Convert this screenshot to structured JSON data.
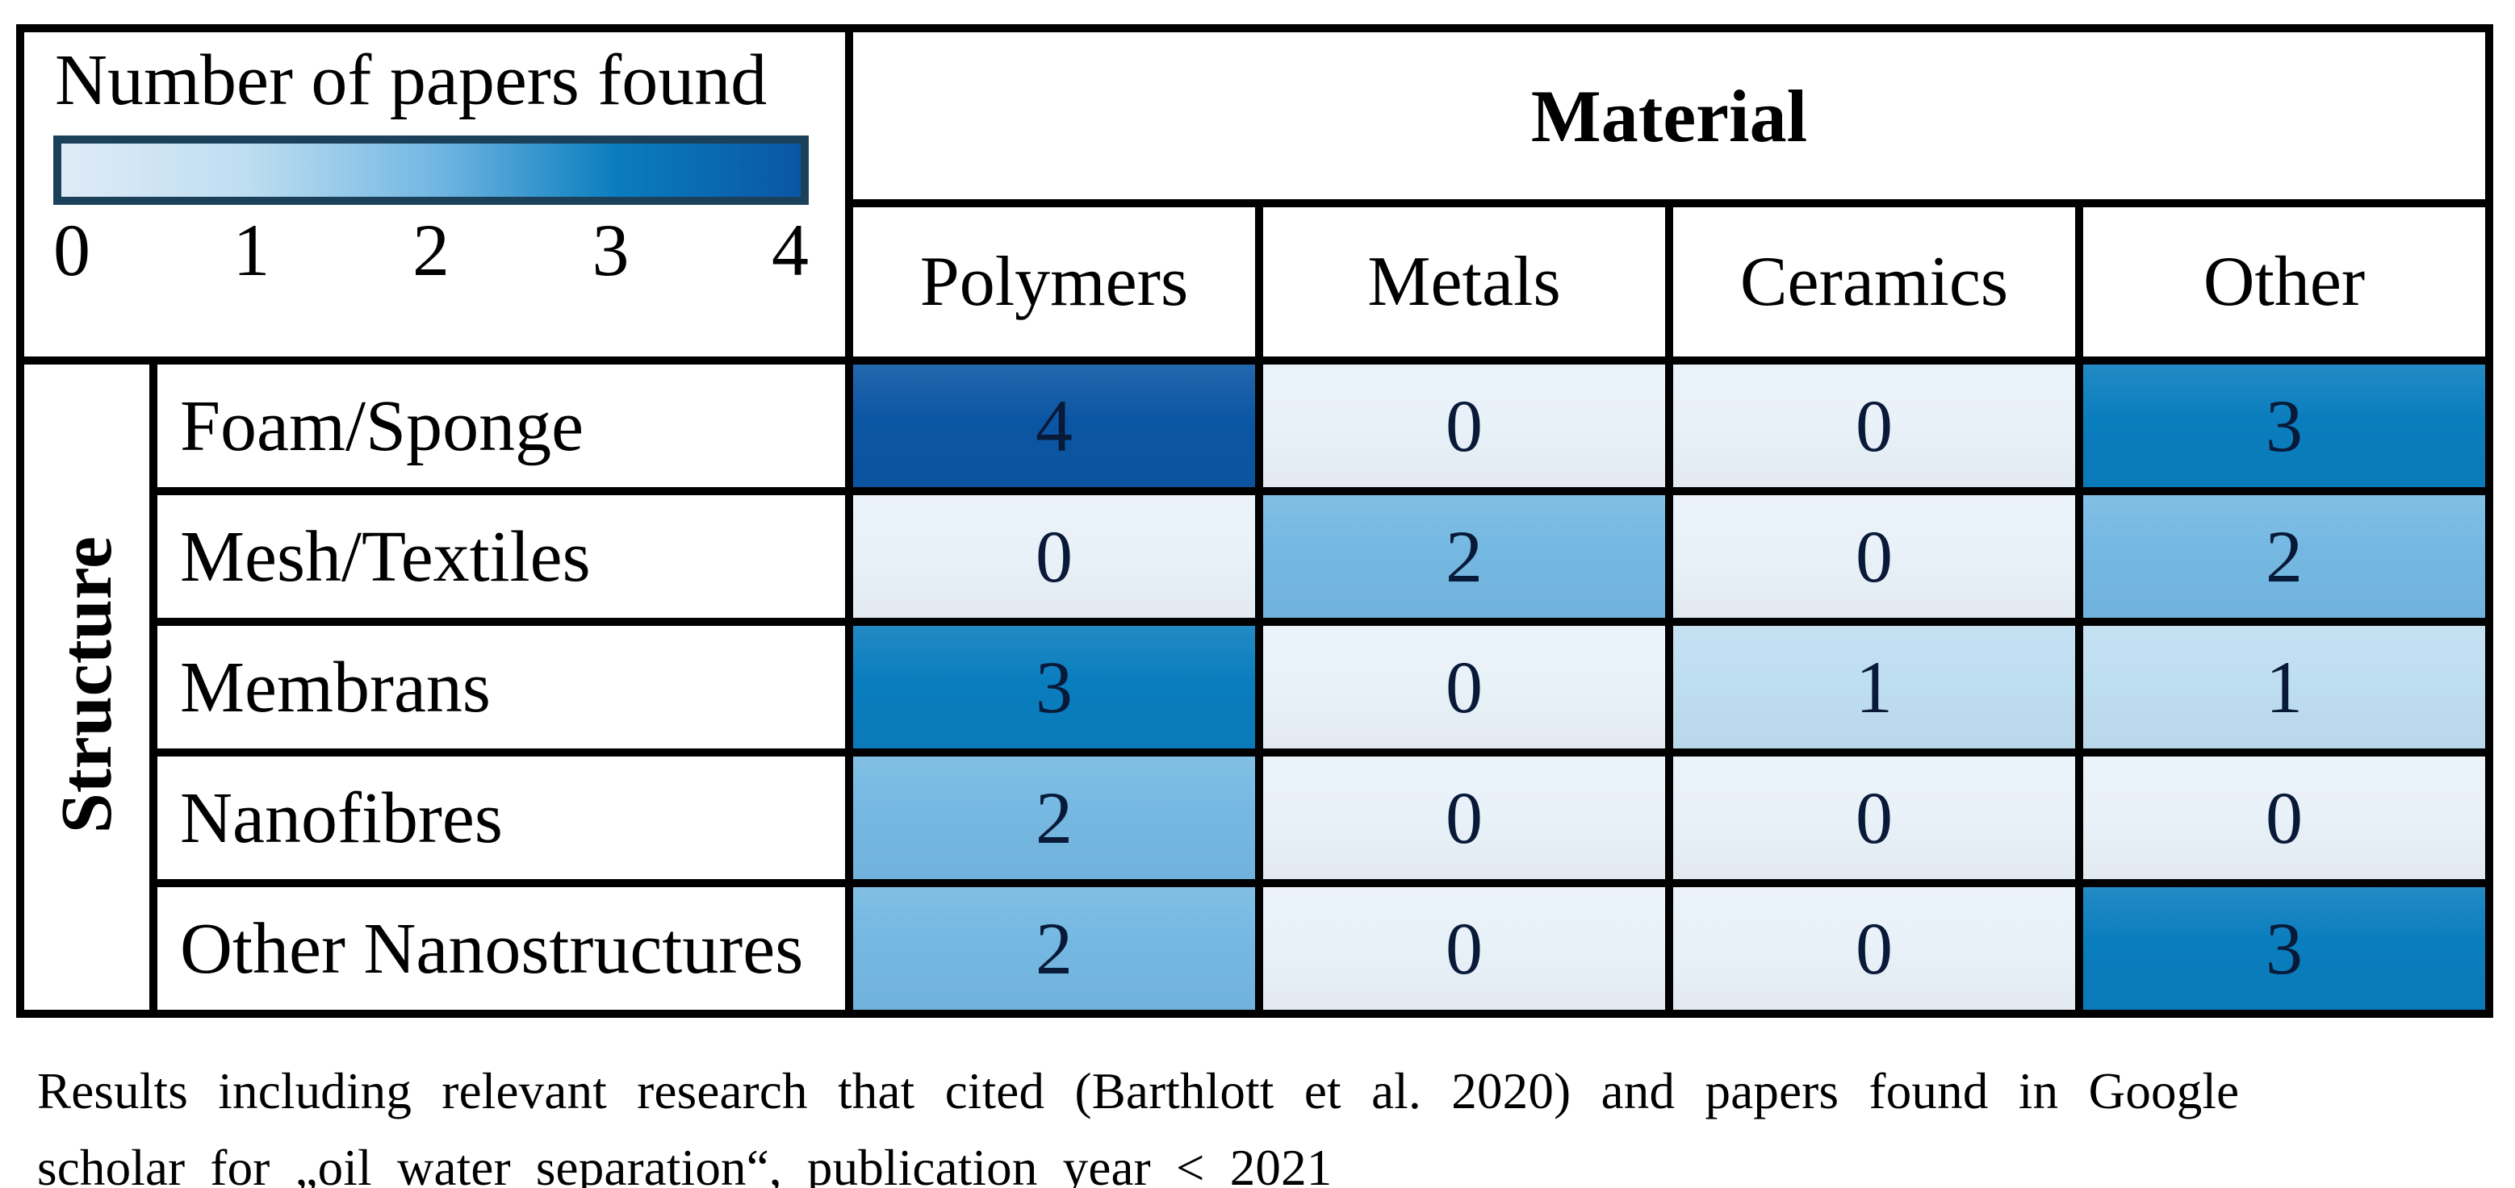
{
  "legend": {
    "title": "Number of papers found"
  },
  "table": {
    "material_header": "Material",
    "structure_header": "Structure"
  },
  "caption": {
    "line1": "Results including relevant research that cited (Barthlott et al. 2020) and papers found in Google",
    "line2": "scholar for „oil water separation“, publication year < 2021"
  },
  "colors": {
    "value_scale": [
      "#E9F1F9",
      "#BEDEF1",
      "#74B8E2",
      "#0A7DBE",
      "#0B56A4"
    ],
    "colorbar_left_end": "#DFEBF7",
    "colorbar_border": "#1B4059",
    "grid_border": "#000000",
    "cell_number_color": "#081A38"
  },
  "chart_data": {
    "type": "heatmap",
    "title": "Number of papers found",
    "x_axis_label": "Material",
    "y_axis_label": "Structure",
    "x_categories": [
      "Polymers",
      "Metals",
      "Ceramics",
      "Other"
    ],
    "y_categories": [
      "Foam/Sponge",
      "Mesh/Textiles",
      "Membrans",
      "Nanofibres",
      "Other Nanostructures"
    ],
    "values": [
      [
        4,
        0,
        0,
        3
      ],
      [
        0,
        2,
        0,
        2
      ],
      [
        3,
        0,
        1,
        1
      ],
      [
        2,
        0,
        0,
        0
      ],
      [
        2,
        0,
        0,
        3
      ]
    ],
    "colorbar": {
      "label": "Number of papers found",
      "min": 0,
      "max": 4,
      "ticks": [
        0,
        1,
        2,
        3,
        4
      ],
      "orientation": "horizontal",
      "position": "top-left"
    },
    "grid": true,
    "annotations": "cell values printed in each cell"
  }
}
